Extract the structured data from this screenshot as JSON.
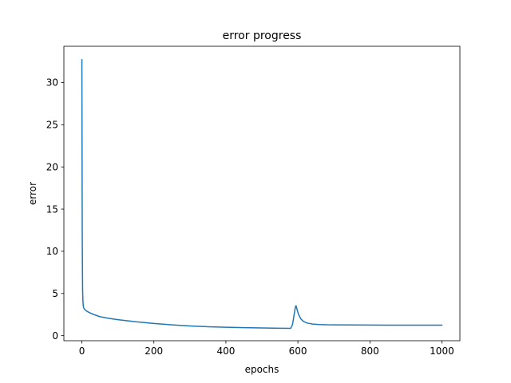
{
  "chart_data": {
    "type": "line",
    "title": "error progress",
    "xlabel": "epochs",
    "ylabel": "error",
    "xlim": [
      -50,
      1050
    ],
    "ylim": [
      -0.6,
      34.3
    ],
    "xticks": [
      0,
      200,
      400,
      600,
      800,
      1000
    ],
    "yticks": [
      0,
      5,
      10,
      15,
      20,
      25,
      30
    ],
    "grid": false,
    "line_color": "#1f77b4",
    "series": [
      {
        "x": [
          0,
          1,
          2,
          3,
          4,
          5,
          8,
          12,
          20,
          30,
          50,
          75,
          100,
          150,
          200,
          250,
          300,
          350,
          400,
          450,
          500,
          550,
          580,
          585,
          590,
          593,
          595,
          598,
          602,
          608,
          615,
          625,
          640,
          660,
          680,
          700,
          750,
          800,
          850,
          900,
          950,
          1000
        ],
        "y": [
          32.7,
          12.0,
          5.5,
          4.0,
          3.5,
          3.3,
          3.1,
          2.95,
          2.75,
          2.55,
          2.25,
          2.05,
          1.9,
          1.65,
          1.45,
          1.28,
          1.15,
          1.06,
          1.0,
          0.95,
          0.91,
          0.88,
          0.87,
          1.3,
          2.6,
          3.4,
          3.55,
          3.05,
          2.5,
          2.0,
          1.7,
          1.5,
          1.38,
          1.32,
          1.29,
          1.28,
          1.27,
          1.26,
          1.25,
          1.25,
          1.24,
          1.24
        ]
      }
    ]
  }
}
